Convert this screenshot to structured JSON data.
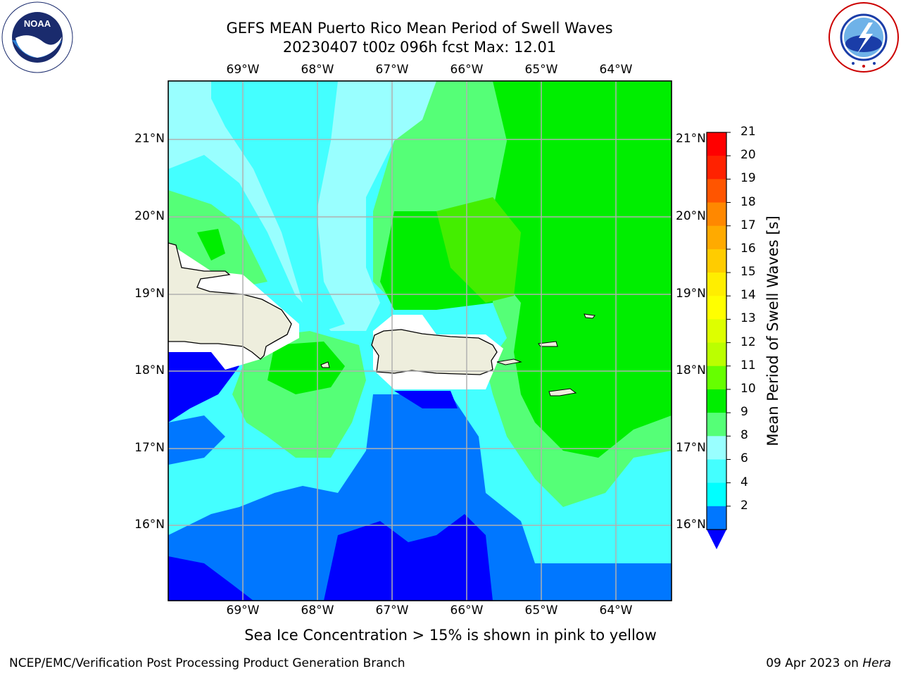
{
  "title": {
    "line1": "GEFS MEAN Puerto Rico Mean Period of Swell Waves",
    "line2": "20230407 t00z 096h fcst   Max: 12.01"
  },
  "logos": {
    "left": "noaa-logo",
    "right": "nws-logo"
  },
  "map": {
    "lon_labels": [
      "69°W",
      "68°W",
      "67°W",
      "66°W",
      "65°W",
      "64°W"
    ],
    "lat_labels": [
      "21°N",
      "20°N",
      "19°N",
      "18°N",
      "17°N",
      "16°N"
    ],
    "colors": {
      "land": "#eeeedd",
      "c2": "#0000ff",
      "c4": "#0077ff",
      "c6": "#00ffff",
      "c8": "#44ffff",
      "c9": "#99ffff",
      "c10": "#55ff77",
      "c11": "#00ee00",
      "c12": "#44ee00"
    }
  },
  "colorbar": {
    "title": "Mean Period of Swell Waves [s]",
    "ticks": [
      "21",
      "20",
      "19",
      "18",
      "17",
      "16",
      "15",
      "14",
      "13",
      "12",
      "11",
      "10",
      "9",
      "8",
      "6",
      "4",
      "2"
    ],
    "colors": [
      "#ff0000",
      "#ff2200",
      "#ff5500",
      "#ff8800",
      "#ffaa00",
      "#ffcc00",
      "#ffee00",
      "#ffff00",
      "#ddff00",
      "#bbff00",
      "#66ff00",
      "#00ee00",
      "#55ff77",
      "#99ffff",
      "#44ffff",
      "#00ffff",
      "#0077ff"
    ],
    "under_color": "#0000ff"
  },
  "note": "Sea Ice Concentration > 15% is shown in pink to yellow",
  "footer": {
    "left": "NCEP/EMC/Verification Post Processing Product Generation Branch",
    "date": "09 Apr 2023 on ",
    "machine": "Hera"
  }
}
